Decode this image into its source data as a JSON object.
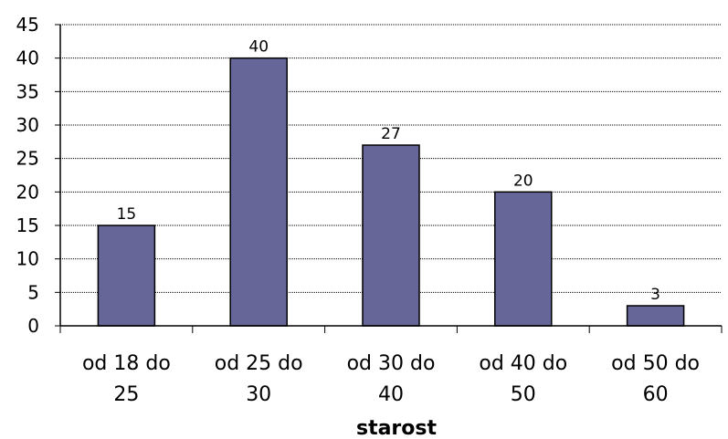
{
  "chart_data": {
    "type": "bar",
    "categories": [
      [
        "od 18 do",
        "25"
      ],
      [
        "od 25 do",
        "30"
      ],
      [
        "od 30 do",
        "40"
      ],
      [
        "od 40 do",
        "50"
      ],
      [
        "od 50 do",
        "60"
      ]
    ],
    "values": [
      15,
      40,
      27,
      20,
      3
    ],
    "data_labels": [
      "15",
      "40",
      "27",
      "20",
      "3"
    ],
    "yticks": [
      "0",
      "5",
      "10",
      "15",
      "20",
      "25",
      "30",
      "35",
      "40",
      "45"
    ],
    "xlabel": "starost",
    "ylabel": "",
    "ylim": [
      0,
      45
    ],
    "grid": true,
    "bar_color": "#666699"
  }
}
